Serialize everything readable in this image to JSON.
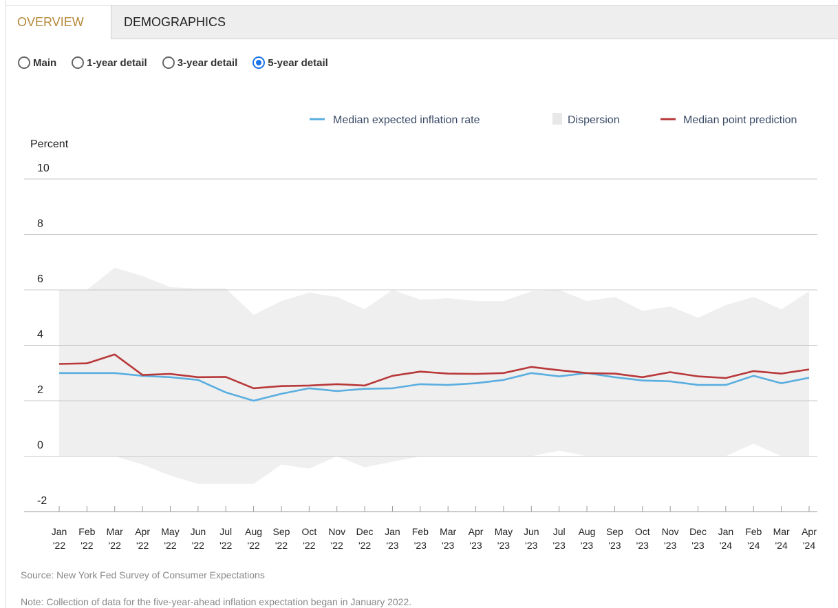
{
  "tabs": [
    {
      "label": "OVERVIEW",
      "active": true
    },
    {
      "label": "DEMOGRAPHICS",
      "active": false
    }
  ],
  "views": [
    {
      "label": "Main",
      "checked": false
    },
    {
      "label": "1-year detail",
      "checked": false
    },
    {
      "label": "3-year detail",
      "checked": false
    },
    {
      "label": "5-year detail",
      "checked": true
    }
  ],
  "source": "Source: New York Fed Survey of Consumer Expectations",
  "note": "Note: Collection of data for the five-year-ahead inflation expectation began in January 2022.",
  "colors": {
    "median_expected": "#5aaee0",
    "dispersion": "#efefef",
    "point_prediction": "#b8383a",
    "active_tab": "#b5893a",
    "radio_accent": "#1a73e8"
  },
  "chart_data": {
    "type": "line",
    "ylabel": "Percent",
    "ylim": [
      -2,
      10
    ],
    "yticks": [
      -2,
      0,
      2,
      4,
      6,
      8,
      10
    ],
    "grid": true,
    "legend_position": "top-right",
    "legend": [
      "Median expected inflation rate",
      "Dispersion",
      "Median point prediction"
    ],
    "categories": [
      [
        "Jan",
        "'22"
      ],
      [
        "Feb",
        "'22"
      ],
      [
        "Mar",
        "'22"
      ],
      [
        "Apr",
        "'22"
      ],
      [
        "May",
        "'22"
      ],
      [
        "Jun",
        "'22"
      ],
      [
        "Jul",
        "'22"
      ],
      [
        "Aug",
        "'22"
      ],
      [
        "Sep",
        "'22"
      ],
      [
        "Oct",
        "'22"
      ],
      [
        "Nov",
        "'22"
      ],
      [
        "Dec",
        "'22"
      ],
      [
        "Jan",
        "'23"
      ],
      [
        "Feb",
        "'23"
      ],
      [
        "Mar",
        "'23"
      ],
      [
        "Apr",
        "'23"
      ],
      [
        "May",
        "'23"
      ],
      [
        "Jun",
        "'23"
      ],
      [
        "Jul",
        "'23"
      ],
      [
        "Aug",
        "'23"
      ],
      [
        "Sep",
        "'23"
      ],
      [
        "Oct",
        "'23"
      ],
      [
        "Nov",
        "'23"
      ],
      [
        "Dec",
        "'23"
      ],
      [
        "Jan",
        "'24"
      ],
      [
        "Feb",
        "'24"
      ],
      [
        "Mar",
        "'24"
      ],
      [
        "Apr",
        "'24"
      ]
    ],
    "series": [
      {
        "name": "Median expected inflation rate",
        "kind": "line",
        "values": [
          3.0,
          3.0,
          3.0,
          2.9,
          2.85,
          2.75,
          2.3,
          2.0,
          2.25,
          2.45,
          2.35,
          2.43,
          2.45,
          2.6,
          2.57,
          2.63,
          2.75,
          3.0,
          2.88,
          3.0,
          2.85,
          2.73,
          2.7,
          2.57,
          2.57,
          2.9,
          2.63,
          2.83
        ]
      },
      {
        "name": "Median point prediction",
        "kind": "line",
        "values": [
          3.33,
          3.35,
          3.67,
          2.93,
          2.97,
          2.85,
          2.86,
          2.45,
          2.53,
          2.55,
          2.6,
          2.55,
          2.9,
          3.05,
          2.98,
          2.97,
          3.0,
          3.22,
          3.1,
          3.0,
          2.98,
          2.85,
          3.03,
          2.88,
          2.82,
          3.07,
          2.98,
          3.13
        ]
      },
      {
        "name": "Dispersion",
        "kind": "band",
        "upper": [
          6.0,
          6.0,
          6.8,
          6.5,
          6.1,
          6.05,
          6.05,
          5.1,
          5.6,
          5.9,
          5.75,
          5.3,
          6.0,
          5.65,
          5.7,
          5.6,
          5.6,
          5.95,
          6.0,
          5.6,
          5.75,
          5.25,
          5.4,
          5.0,
          5.45,
          5.75,
          5.3,
          5.95
        ],
        "lower": [
          0,
          0,
          0,
          -0.3,
          -0.7,
          -1.0,
          -1.0,
          -1.0,
          -0.3,
          -0.45,
          0,
          -0.4,
          -0.2,
          0,
          0,
          0,
          0,
          0,
          0.2,
          0,
          0,
          0,
          0,
          0,
          0,
          0.45,
          0,
          0
        ]
      }
    ]
  }
}
